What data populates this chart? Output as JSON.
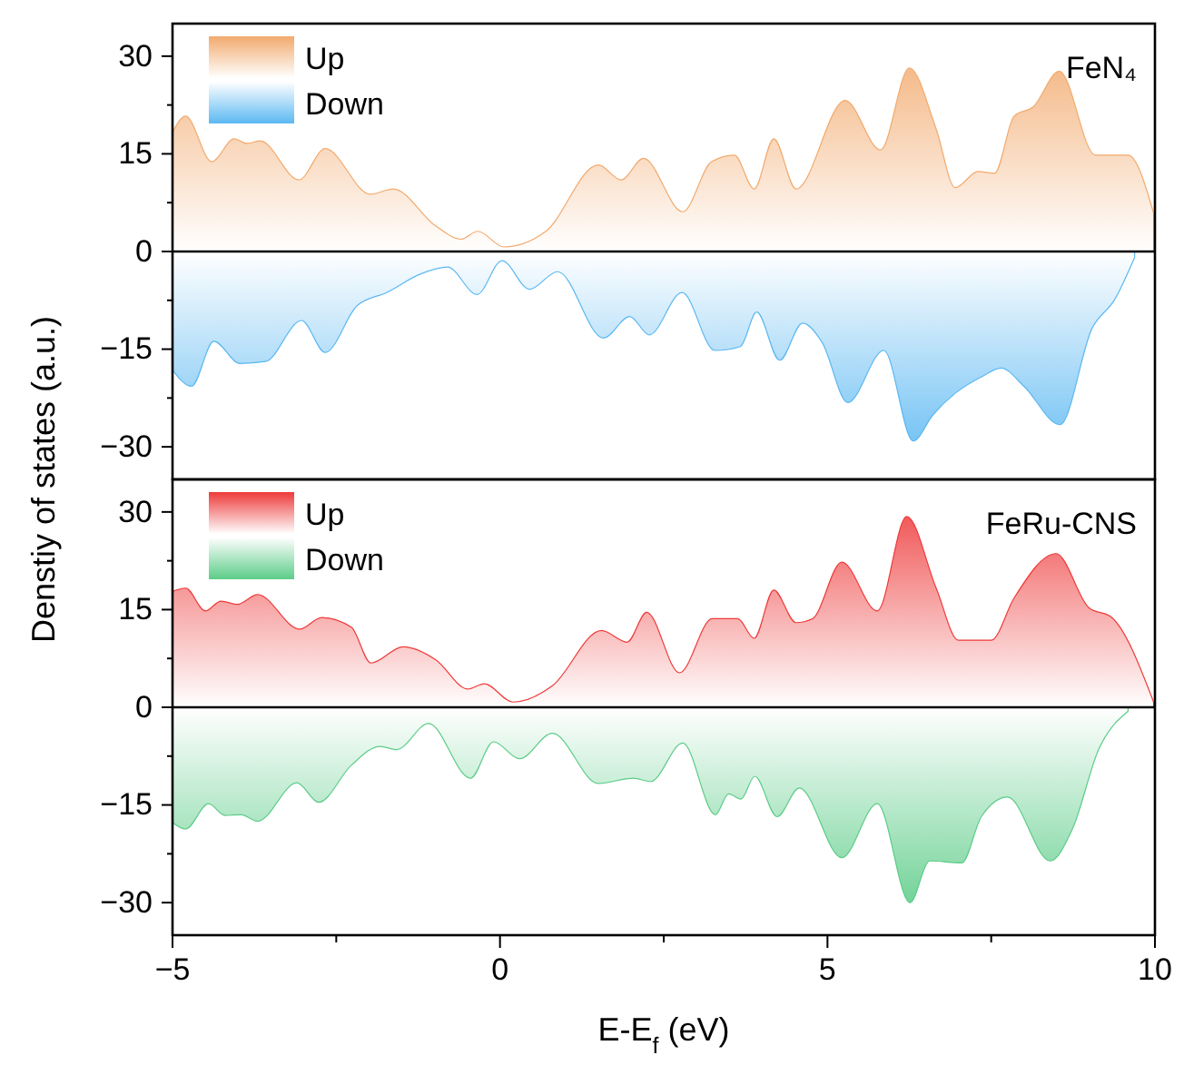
{
  "chart_data": [
    {
      "type": "area",
      "title": "FeN₄",
      "ylabel": "Denstiy of states (a.u.)",
      "legend": "top left",
      "tick_labels": "y",
      "xlim": [
        -5,
        10
      ],
      "ylim": [
        -35,
        35
      ],
      "yticks": [
        -30,
        {
          "value": -22.5,
          "label": null
        },
        -15,
        {
          "value": -7.5,
          "label": null
        },
        0,
        {
          "value": 7.5,
          "label": null
        },
        15,
        {
          "value": 22.5,
          "label": null
        },
        30
      ],
      "ref_lines": [
        {
          "axis": "y",
          "value": 0,
          "color": "#000000"
        }
      ],
      "series": [
        {
          "name": "Up",
          "color": "#f2aa6e",
          "x": [
            -5,
            -4.8,
            -4.4,
            -4.06,
            -3.86,
            -3.66,
            -3.07,
            -2.67,
            -1.98,
            -1.63,
            -0.98,
            -0.59,
            -0.34,
            0.06,
            0.7,
            1.5,
            1.85,
            2.19,
            2.79,
            3.23,
            3.58,
            3.88,
            4.18,
            4.52,
            5.27,
            5.81,
            6.25,
            6.66,
            6.95,
            7.3,
            7.55,
            7.85,
            8.14,
            8.54,
            9.09,
            9.59,
            9.98
          ],
          "values": [
            18.3,
            20.8,
            13.8,
            17.3,
            16.6,
            17,
            11,
            15.8,
            8.8,
            9.6,
            3.9,
            1.9,
            3.1,
            0.7,
            3.1,
            13.3,
            11,
            14.3,
            6.1,
            13.8,
            14.8,
            9.6,
            17.3,
            9.6,
            23.2,
            15.6,
            28.2,
            18.8,
            9.8,
            12.3,
            12,
            20.8,
            22.2,
            27.7,
            14.8,
            14.8,
            5.9
          ]
        },
        {
          "name": "Down",
          "color": "#5cb8f2",
          "x": [
            -5,
            -4.71,
            -4.37,
            -3.97,
            -3.58,
            -3.03,
            -2.67,
            -2.18,
            -1.73,
            -1.2,
            -0.8,
            -0.35,
            0.03,
            0.45,
            0.88,
            1.58,
            1.98,
            2.28,
            2.78,
            3.28,
            3.67,
            3.92,
            4.27,
            4.62,
            4.92,
            5.31,
            5.86,
            6.31,
            6.61,
            6.96,
            7.36,
            7.65,
            8,
            8.55,
            9.04,
            9.39,
            9.69
          ],
          "values": [
            -18.2,
            -20.7,
            -13.8,
            -17.2,
            -16.9,
            -10.6,
            -15.5,
            -8.3,
            -6.3,
            -3.4,
            -2.4,
            -6.6,
            -1.4,
            -5.8,
            -3.1,
            -13.3,
            -10,
            -12.8,
            -6.3,
            -15.2,
            -14.6,
            -9.3,
            -16.7,
            -11,
            -14,
            -23.2,
            -15.2,
            -29.1,
            -25.1,
            -21.7,
            -19.2,
            -17.9,
            -20.7,
            -26.6,
            -11.8,
            -7.3,
            -0.9
          ]
        }
      ]
    },
    {
      "type": "area",
      "title": "FeRu-CNS",
      "xlabel": "E-E$_{f}$ (eV)",
      "legend": "top left",
      "xlim": [
        -5,
        10
      ],
      "xticks": [
        -5,
        {
          "value": -2.5,
          "label": null
        },
        0,
        {
          "value": 2.5,
          "label": null
        },
        5,
        {
          "value": 7.5,
          "label": null
        },
        10
      ],
      "ylim": [
        -35,
        35
      ],
      "yticks": [
        -30,
        {
          "value": -22.5,
          "label": null
        },
        -15,
        {
          "value": -7.5,
          "label": null
        },
        0,
        {
          "value": 7.5,
          "label": null
        },
        15,
        {
          "value": 22.5,
          "label": null
        },
        30
      ],
      "ref_lines": [
        {
          "axis": "y",
          "value": 0,
          "color": "#000000"
        }
      ],
      "series": [
        {
          "name": "Up",
          "color": "#ee3a3a",
          "x": [
            -5,
            -4.8,
            -4.5,
            -4.26,
            -4.01,
            -3.7,
            -3.06,
            -2.72,
            -2.27,
            -1.97,
            -1.48,
            -0.98,
            -0.49,
            -0.24,
            0.2,
            0.8,
            1.55,
            1.94,
            2.24,
            2.74,
            3.24,
            3.63,
            3.88,
            4.18,
            4.52,
            4.77,
            5.22,
            5.76,
            6.21,
            6.66,
            7,
            7.5,
            7.85,
            8.49,
            8.99,
            9.34,
            9.98
          ],
          "values": [
            17.8,
            18.3,
            14.8,
            16.3,
            15.8,
            17.3,
            12,
            13.8,
            12.3,
            6.8,
            9.3,
            7.3,
            2.8,
            3.6,
            0.8,
            3.3,
            11.8,
            10,
            14.6,
            5.3,
            13.6,
            13.6,
            10.6,
            18,
            13,
            13.6,
            22.3,
            14.8,
            29.3,
            18.3,
            10.3,
            10.3,
            16.8,
            23.6,
            15.3,
            13.8,
            0.8
          ]
        },
        {
          "name": "Down",
          "color": "#5ccc88",
          "x": [
            -5,
            -4.8,
            -4.45,
            -4.2,
            -3.95,
            -3.7,
            -3.1,
            -2.77,
            -2.27,
            -1.83,
            -1.58,
            -1.09,
            -0.45,
            -0.1,
            0.3,
            0.8,
            1.5,
            2.04,
            2.3,
            2.79,
            3.29,
            3.49,
            3.68,
            3.89,
            4.23,
            4.57,
            5.22,
            5.76,
            6.26,
            6.56,
            7.05,
            7.35,
            7.75,
            8.4,
            8.74,
            9.14,
            9.59
          ],
          "values": [
            -17.7,
            -18.7,
            -14.8,
            -16.6,
            -16.5,
            -17.5,
            -11.6,
            -14.6,
            -8.9,
            -6,
            -6.5,
            -2.5,
            -10.9,
            -5.3,
            -7.9,
            -4,
            -11.7,
            -10.9,
            -11.4,
            -5.5,
            -16.5,
            -13.3,
            -14.1,
            -10.6,
            -16.8,
            -12.4,
            -23.1,
            -14.8,
            -30,
            -23.6,
            -23.9,
            -16.8,
            -13.8,
            -23.6,
            -18.7,
            -6.5,
            -0.6
          ]
        }
      ]
    }
  ]
}
